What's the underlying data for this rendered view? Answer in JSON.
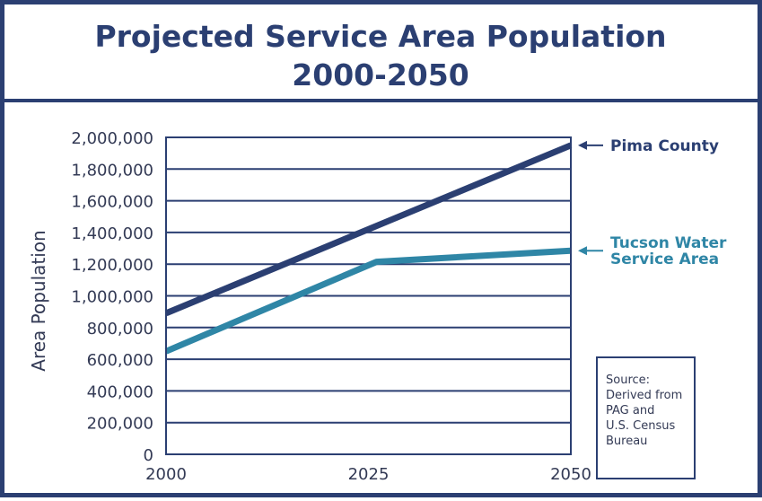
{
  "chart_data": {
    "type": "line",
    "title_line1": "Projected Service Area Population",
    "title_line2": "2000-2050",
    "ylabel": "Area Population",
    "x": [
      2000,
      2025,
      2050
    ],
    "x_tick_labels": [
      "2000",
      "2025",
      "2050"
    ],
    "ylim": [
      0,
      2000000
    ],
    "y_ticks": [
      0,
      200000,
      400000,
      600000,
      800000,
      1000000,
      1200000,
      1400000,
      1600000,
      1800000,
      2000000
    ],
    "y_tick_labels": [
      "0",
      "200,000",
      "400,000",
      "600,000",
      "800,000",
      "1,000,000",
      "1,200,000",
      "1,400,000",
      "1,600,000",
      "1,800,000",
      "2,000,000"
    ],
    "grid": true,
    "series": [
      {
        "name": "Pima County",
        "label_lines": [
          "Pima County"
        ],
        "color": "#2b3f72",
        "points": [
          [
            2000,
            890000
          ],
          [
            2050,
            1950000
          ]
        ]
      },
      {
        "name": "Tucson Water Service Area",
        "label_lines": [
          "Tucson Water",
          "Service Area"
        ],
        "color": "#2f86a6",
        "points": [
          [
            2000,
            650000
          ],
          [
            2026,
            1215000
          ],
          [
            2050,
            1285000
          ]
        ]
      }
    ],
    "source_note": [
      "Source:",
      "Derived from",
      "PAG and",
      "U.S. Census",
      "Bureau"
    ]
  },
  "colors": {
    "frame": "#2b3f72",
    "title": "#2b3f72",
    "axis_text": "#333a55",
    "grid": "#2b3f72"
  }
}
